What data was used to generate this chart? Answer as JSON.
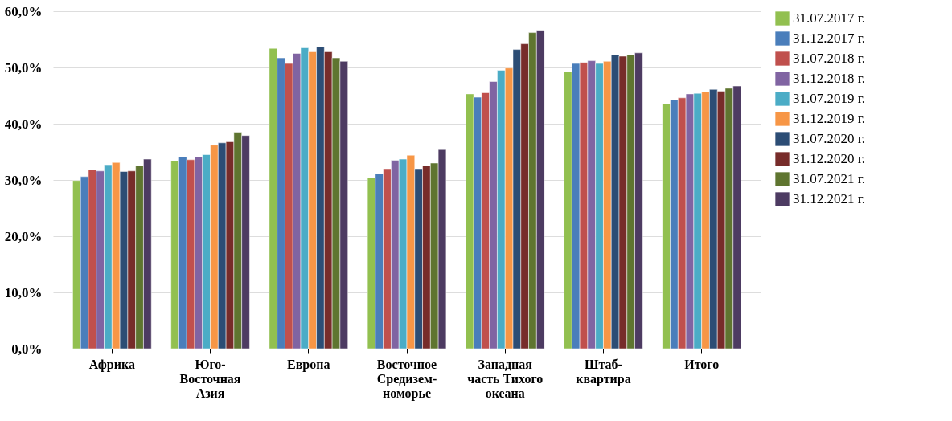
{
  "chart_data": {
    "type": "bar",
    "categories": [
      "Африка",
      "Юго-\nВосточная\nАзия",
      "Европа",
      "Восточное\nСредизем-\nноморье",
      "Западная\nчасть Тихого\nокеана",
      "Штаб-\nквартира",
      "Итого"
    ],
    "series": [
      {
        "name": "31.07.2017 г.",
        "color": "#92c050",
        "values": [
          29.9,
          33.4,
          53.4,
          30.4,
          45.3,
          49.3,
          43.5
        ]
      },
      {
        "name": "31.12.2017 г.",
        "color": "#4a7ebb",
        "values": [
          30.6,
          34.1,
          51.7,
          31.1,
          44.7,
          50.7,
          44.3
        ]
      },
      {
        "name": "31.07.2018 г.",
        "color": "#c0504d",
        "values": [
          31.8,
          33.6,
          50.7,
          32.0,
          45.5,
          50.9,
          44.6
        ]
      },
      {
        "name": "31.12.2018 г.",
        "color": "#8064a2",
        "values": [
          31.6,
          34.1,
          52.5,
          33.5,
          47.5,
          51.2,
          45.3
        ]
      },
      {
        "name": "31.07.2019 г.",
        "color": "#4bacc6",
        "values": [
          32.7,
          34.5,
          53.5,
          33.7,
          49.5,
          50.7,
          45.4
        ]
      },
      {
        "name": "31.12.2019 г.",
        "color": "#f79646",
        "values": [
          33.1,
          36.2,
          52.8,
          34.4,
          49.9,
          51.1,
          45.7
        ]
      },
      {
        "name": "31.07.2020 г.",
        "color": "#2c4d75",
        "values": [
          31.5,
          36.6,
          53.7,
          32.0,
          53.2,
          52.3,
          46.1
        ]
      },
      {
        "name": "31.12.2020 г.",
        "color": "#772c2a",
        "values": [
          31.6,
          36.8,
          52.8,
          32.5,
          54.2,
          52.0,
          45.8
        ]
      },
      {
        "name": "31.07.2021 г.",
        "color": "#5f7530",
        "values": [
          32.5,
          38.5,
          51.7,
          33.0,
          56.2,
          52.3,
          46.3
        ]
      },
      {
        "name": "31.12.2021 г.",
        "color": "#4d3b62",
        "values": [
          33.7,
          37.9,
          51.1,
          35.4,
          56.6,
          52.6,
          46.7
        ]
      }
    ],
    "ylim": [
      0,
      60
    ],
    "yticks": [
      {
        "value": 0,
        "label": "0,0%"
      },
      {
        "value": 10,
        "label": "10,0%"
      },
      {
        "value": 20,
        "label": "20,0%"
      },
      {
        "value": 30,
        "label": "30,0%"
      },
      {
        "value": 40,
        "label": "40,0%"
      },
      {
        "value": 50,
        "label": "50,0%"
      },
      {
        "value": 60,
        "label": "60,0%"
      }
    ],
    "grid": "y",
    "legend": "right"
  }
}
